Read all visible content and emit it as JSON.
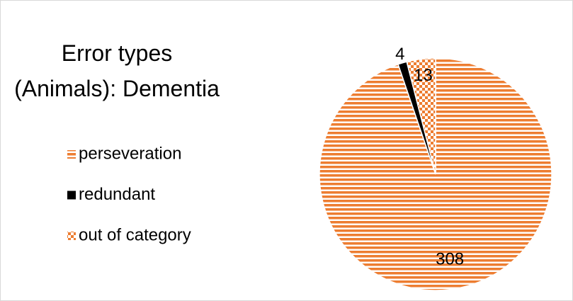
{
  "chart_data": {
    "type": "pie",
    "title": "Error types (Animals): Dementia",
    "categories": [
      "perseveration",
      "redundant",
      "out of category"
    ],
    "values": [
      308,
      4,
      13
    ],
    "colors": [
      "#ed7d31",
      "#000000",
      "#ed7d31"
    ],
    "patterns": [
      "horizontal-stripes",
      "solid",
      "checker"
    ],
    "legend": "left"
  }
}
